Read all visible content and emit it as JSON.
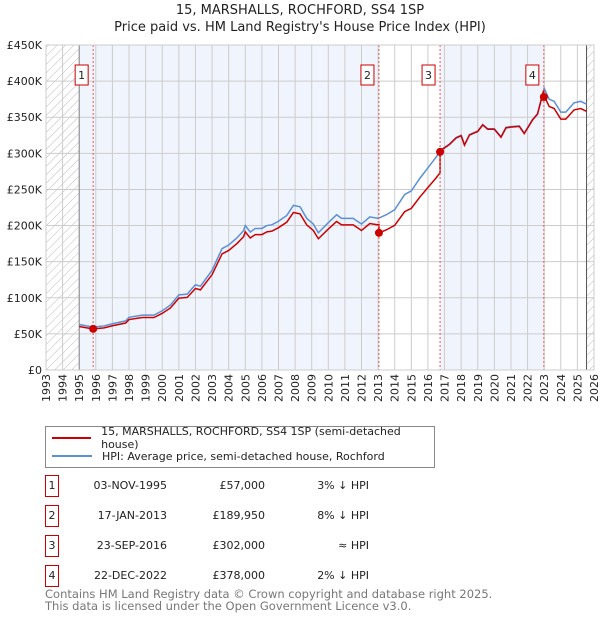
{
  "chart_data": {
    "type": "line",
    "title": "15, MARSHALLS, ROCHFORD, SS4 1SP",
    "subtitle": "Price paid vs. HM Land Registry's House Price Index (HPI)",
    "xlim": [
      1993,
      2026
    ],
    "ylim": [
      0,
      450000
    ],
    "x_ticks": [
      "1993",
      "1994",
      "1995",
      "1996",
      "1997",
      "1998",
      "1999",
      "2000",
      "2001",
      "2002",
      "2003",
      "2004",
      "2005",
      "2006",
      "2007",
      "2008",
      "2009",
      "2010",
      "2011",
      "2012",
      "2013",
      "2014",
      "2015",
      "2016",
      "2017",
      "2018",
      "2019",
      "2020",
      "2021",
      "2022",
      "2023",
      "2024",
      "2025",
      "2026"
    ],
    "y_ticks": [
      {
        "v": 0,
        "label": "£0"
      },
      {
        "v": 50000,
        "label": "£50K"
      },
      {
        "v": 100000,
        "label": "£100K"
      },
      {
        "v": 150000,
        "label": "£150K"
      },
      {
        "v": 200000,
        "label": "£200K"
      },
      {
        "v": 250000,
        "label": "£250K"
      },
      {
        "v": 300000,
        "label": "£300K"
      },
      {
        "v": 350000,
        "label": "£350K"
      },
      {
        "v": 400000,
        "label": "£400K"
      },
      {
        "v": 450000,
        "label": "£450K"
      }
    ],
    "grid": true,
    "data_range": [
      1995.0,
      2025.55
    ],
    "colors": {
      "property": "#cc0000",
      "hpi": "#5b8fd6",
      "shade": "#f0f4fd"
    },
    "hpi_series": {
      "x": [
        1995,
        1995.8,
        1996.5,
        1997,
        1997.8,
        1998,
        1998.8,
        1999.5,
        2000,
        2000.5,
        2001,
        2001.5,
        2002,
        2002.3,
        2003,
        2003.3,
        2003.6,
        2004,
        2004.5,
        2004.9,
        2005,
        2005.3,
        2005.6,
        2006,
        2006.3,
        2006.6,
        2007,
        2007.5,
        2007.9,
        2008.3,
        2008.7,
        2009.1,
        2009.4,
        2010,
        2010.5,
        2010.8,
        2011.5,
        2012,
        2012.5,
        2013,
        2013.5,
        2014,
        2014.6,
        2015,
        2015.5,
        2016,
        2016.5,
        2016.8,
        2017.3,
        2017.7,
        2018,
        2018.2,
        2018.5,
        2019,
        2019.3,
        2019.6,
        2020,
        2020.4,
        2020.7,
        2021,
        2021.5,
        2021.8,
        2022.3,
        2022.6,
        2022.9,
        2023.0,
        2023.3,
        2023.6,
        2024,
        2024.3,
        2024.8,
        2025.2,
        2025.55
      ],
      "y": [
        63000,
        59500,
        61000,
        64000,
        68000,
        73000,
        76000,
        76000,
        82000,
        90000,
        104000,
        105000,
        118000,
        116000,
        138000,
        153000,
        168000,
        173000,
        183000,
        193000,
        200000,
        191000,
        196000,
        196000,
        200000,
        201000,
        206000,
        214000,
        228000,
        226000,
        210000,
        202000,
        190000,
        204000,
        215000,
        210000,
        210000,
        202000,
        212000,
        210000,
        215000,
        222000,
        243000,
        248000,
        265000,
        280000,
        295000,
        305000,
        313000,
        322000,
        325000,
        312000,
        326000,
        331000,
        340000,
        334000,
        334000,
        323000,
        336000,
        337000,
        338000,
        328000,
        347000,
        355000,
        382000,
        390000,
        375000,
        372000,
        357000,
        357000,
        370000,
        372000,
        368000
      ]
    },
    "legend": [
      {
        "label": "15, MARSHALLS, ROCHFORD, SS4 1SP (semi-detached house)",
        "series": "property"
      },
      {
        "label": "HPI: Average price, semi-detached house, Rochford",
        "series": "hpi"
      }
    ],
    "sales": [
      {
        "id": "1",
        "t": 1995.84,
        "date": "03-NOV-1995",
        "price": 57000,
        "price_label": "£57,000",
        "vs_hpi": "3% ↓ HPI"
      },
      {
        "id": "2",
        "t": 2013.05,
        "date": "17-JAN-2013",
        "price": 189950,
        "price_label": "£189,950",
        "vs_hpi": "8% ↓ HPI"
      },
      {
        "id": "3",
        "t": 2016.73,
        "date": "23-SEP-2016",
        "price": 302000,
        "price_label": "£302,000",
        "vs_hpi": "≈ HPI"
      },
      {
        "id": "4",
        "t": 2022.98,
        "date": "22-DEC-2022",
        "price": 378000,
        "price_label": "£378,000",
        "vs_hpi": "2% ↓ HPI"
      }
    ]
  },
  "footer": {
    "line1": "Contains HM Land Registry data © Crown copyright and database right 2025.",
    "line2": "This data is licensed under the Open Government Licence v3.0."
  }
}
